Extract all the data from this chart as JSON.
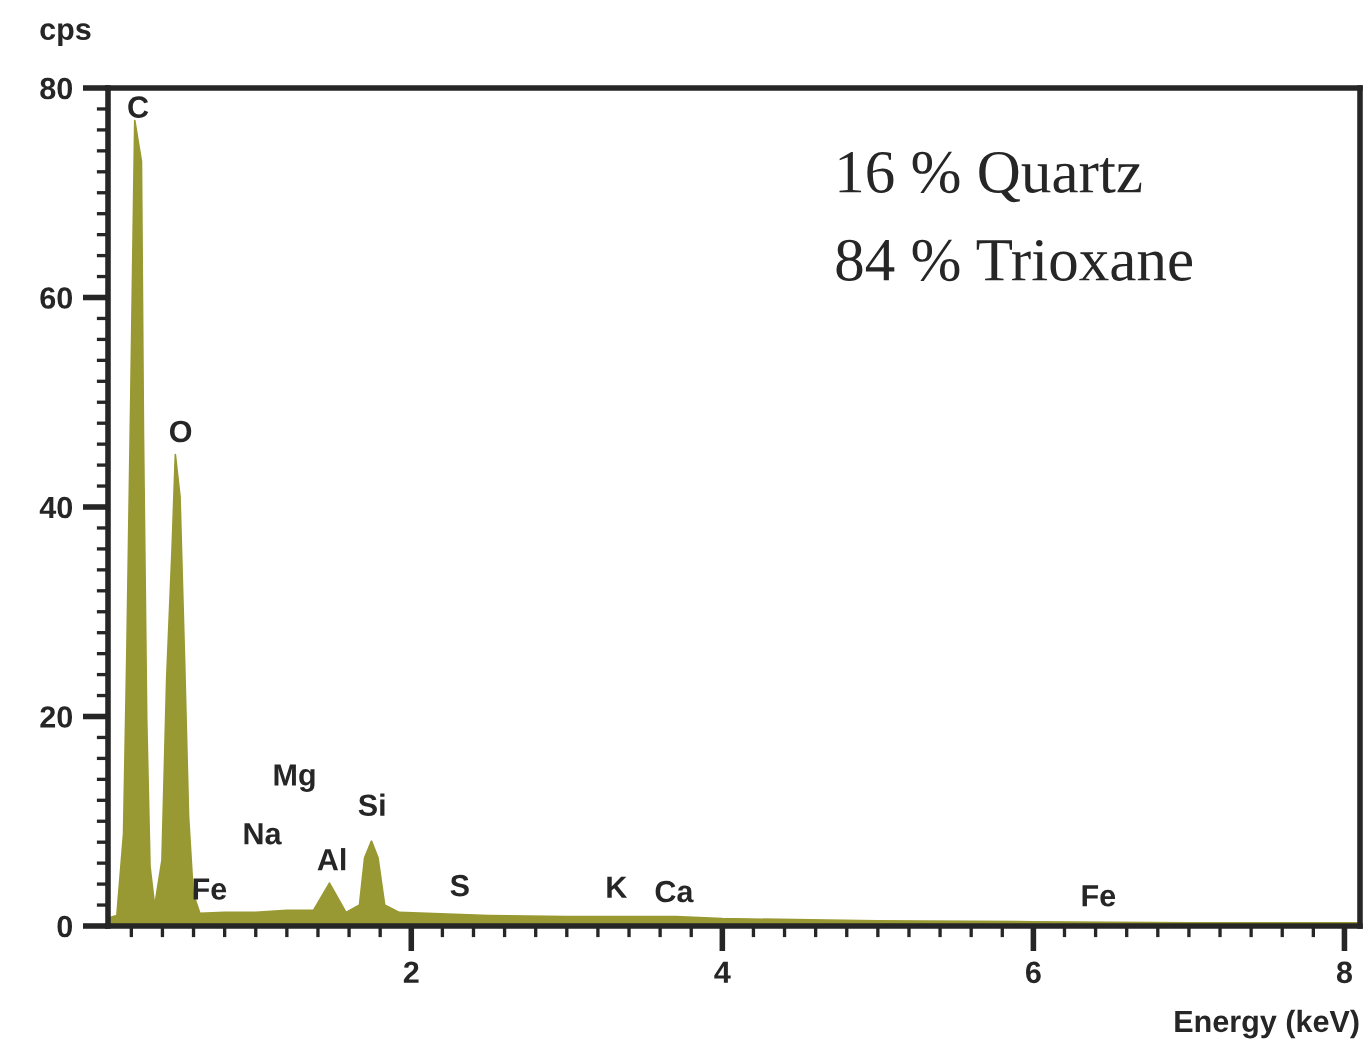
{
  "chart_data": {
    "type": "area",
    "ylabel": "cps",
    "xlabel": "Energy (keV)",
    "x": [
      0.06,
      0.107,
      0.15,
      0.171,
      0.197,
      0.222,
      0.265,
      0.278,
      0.299,
      0.32,
      0.35,
      0.397,
      0.427,
      0.462,
      0.483,
      0.513,
      0.543,
      0.568,
      0.598,
      0.641,
      0.8,
      1.0,
      1.2,
      1.372,
      1.474,
      1.58,
      1.667,
      1.7,
      1.744,
      1.786,
      1.829,
      1.923,
      2.5,
      3.0,
      3.7,
      4.0,
      5.0,
      6.0,
      7.0,
      8.08
    ],
    "series": [
      {
        "color": "#999933",
        "values": [
          0.8,
          1,
          8.8,
          26,
          51,
          76.9,
          73,
          47,
          19.7,
          5.7,
          1.9,
          6.3,
          23.5,
          36,
          45,
          41,
          25,
          10.5,
          3.1,
          1.2,
          1.3,
          1.3,
          1.5,
          1.5,
          4.1,
          1.3,
          2,
          6.5,
          8.1,
          6.5,
          2,
          1.3,
          1.0,
          0.9,
          0.9,
          0.7,
          0.5,
          0.4,
          0.3,
          0.3
        ]
      }
    ],
    "xlim": [
      0.05,
      8.1
    ],
    "ylim": [
      0,
      80
    ],
    "xticks": [
      2,
      4,
      6,
      8
    ],
    "yticks": [
      0,
      20,
      40,
      60,
      80
    ],
    "grid": false,
    "legend": false,
    "annotations": [
      "C",
      "O",
      "Fe",
      "Na",
      "Mg",
      "Al",
      "Si",
      "S",
      "K",
      "Ca",
      "Fe",
      "16 % Quartz",
      "84 % Trioxane"
    ]
  }
}
